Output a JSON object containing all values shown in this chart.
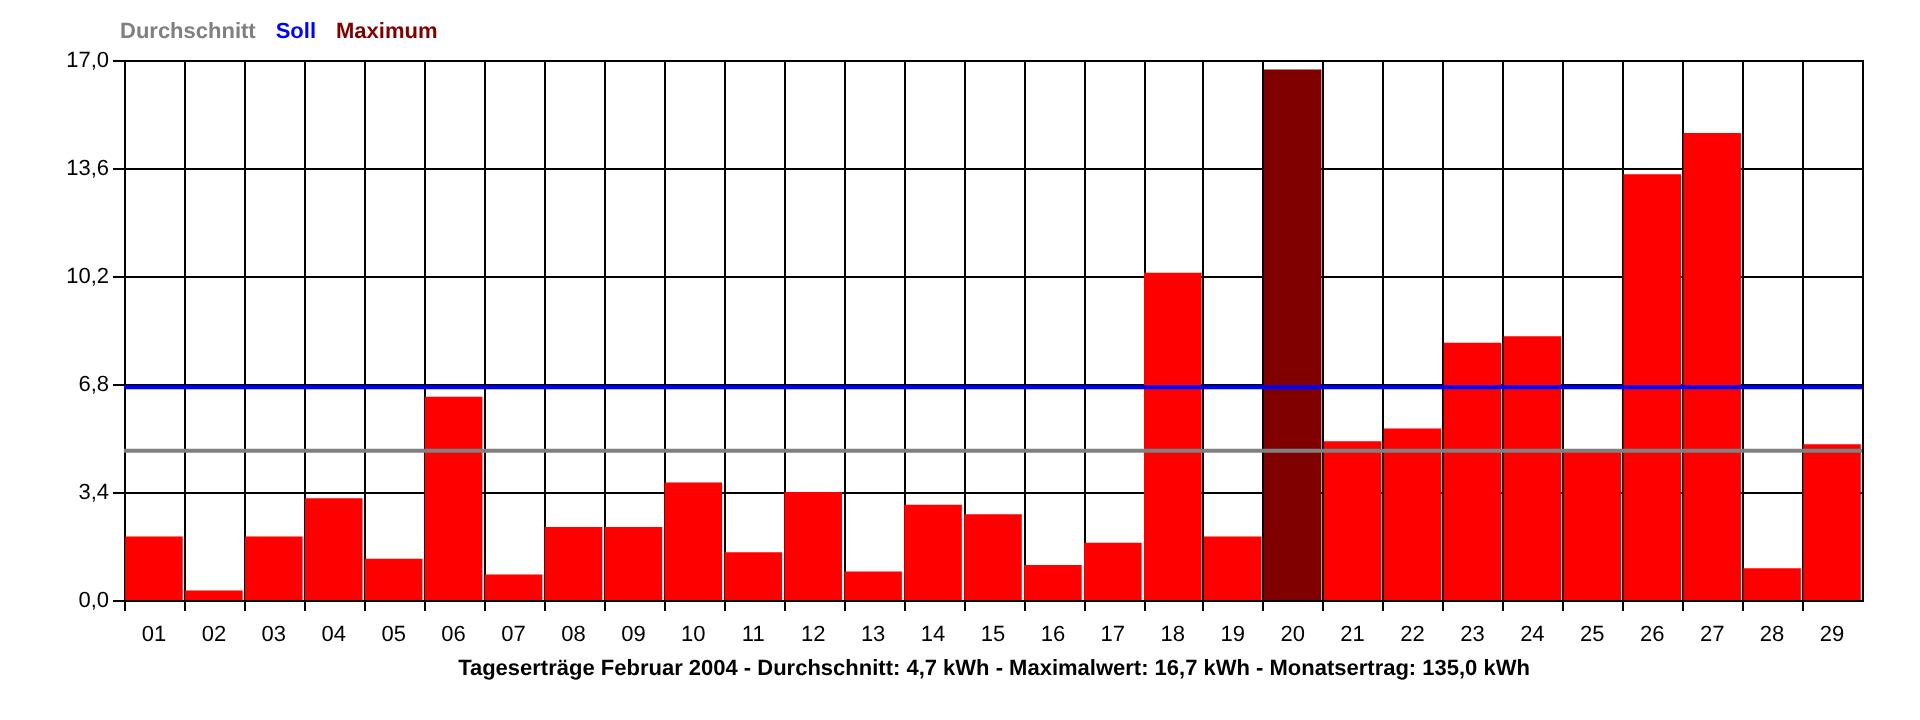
{
  "chart_data": {
    "type": "bar",
    "stacked": true,
    "categories": [
      "01",
      "02",
      "03",
      "04",
      "05",
      "06",
      "07",
      "08",
      "09",
      "10",
      "11",
      "12",
      "13",
      "14",
      "15",
      "16",
      "17",
      "18",
      "19",
      "20",
      "21",
      "22",
      "23",
      "24",
      "25",
      "26",
      "27",
      "28",
      "29"
    ],
    "series": [
      {
        "color": "#ff0000",
        "values": [
          2.0,
          0.3,
          2.0,
          3.2,
          1.3,
          6.4,
          0.8,
          2.3,
          2.3,
          3.7,
          1.5,
          3.4,
          0.9,
          3.0,
          2.7,
          1.1,
          1.8,
          10.3,
          2.0,
          null,
          5.0,
          5.4,
          8.1,
          8.3,
          4.7,
          13.4,
          14.7,
          1.0,
          4.9
        ]
      },
      {
        "name": "Maximum",
        "color": "#800000",
        "values": [
          null,
          null,
          null,
          null,
          null,
          null,
          null,
          null,
          null,
          null,
          null,
          null,
          null,
          null,
          null,
          null,
          null,
          null,
          null,
          16.7,
          null,
          null,
          null,
          null,
          null,
          null,
          null,
          null,
          null
        ]
      }
    ],
    "ylim": [
      0,
      17
    ],
    "yticks": [
      {
        "value": 0,
        "label": "0,0"
      },
      {
        "value": 3.4,
        "label": "3,4"
      },
      {
        "value": 6.8,
        "label": "6,8"
      },
      {
        "value": 10.2,
        "label": "10,2"
      },
      {
        "value": 13.6,
        "label": "13,6"
      },
      {
        "value": 17,
        "label": "17,0"
      }
    ],
    "ref_lines": [
      {
        "axis": "y",
        "value": 4.7,
        "label": "Durchschnitt",
        "color": "#808080"
      },
      {
        "axis": "y",
        "value": 6.7,
        "label": "Soll",
        "color": "#0000ff"
      }
    ],
    "xlabel": "Tageserträge Februar 2004 - Durchschnitt: 4,7 kWh - Maximalwert: 16,7 kWh - Monatsertrag: 135,0 kWh",
    "grid": true,
    "legend": "top left"
  }
}
